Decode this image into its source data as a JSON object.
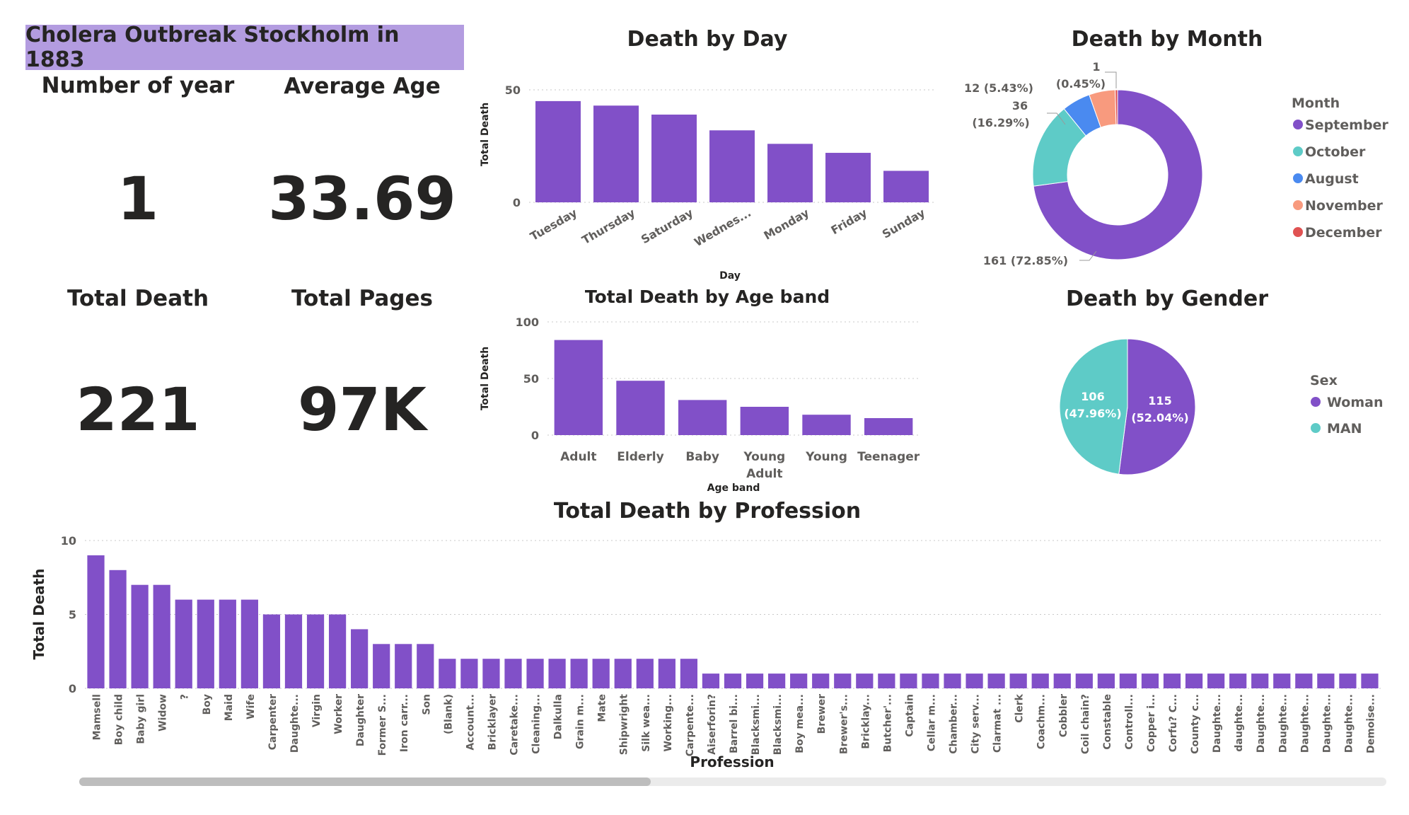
{
  "dashboard": {
    "title": "Cholera Outbreak Stockholm in 1883"
  },
  "kpis": {
    "years_label": "Number of year",
    "years_value": "1",
    "avg_age_label": "Average Age",
    "avg_age_value": "33.69",
    "total_death_label": "Total Death",
    "total_death_value": "221",
    "total_pages_label": "Total Pages",
    "total_pages_value": "97K"
  },
  "colors": {
    "bar": "#8150c8",
    "banner": "#b39ce0",
    "september": "#8150c8",
    "october": "#5ecbc7",
    "august": "#4a8af0",
    "november": "#f89a7e",
    "december": "#e05252",
    "woman": "#8150c8",
    "man": "#5ecbc7"
  },
  "chart_data": [
    {
      "id": "day",
      "type": "bar",
      "title": "Death by Day",
      "xlabel": "Day",
      "ylabel": "Total Death",
      "categories": [
        "Tuesday",
        "Thursday",
        "Saturday",
        "Wednes...",
        "Monday",
        "Friday",
        "Sunday"
      ],
      "values": [
        45,
        43,
        39,
        32,
        26,
        22,
        14
      ],
      "ylim": [
        0,
        50
      ],
      "yticks": [
        0,
        50
      ],
      "grid": true
    },
    {
      "id": "age",
      "type": "bar",
      "title": "Total Death by Age band",
      "xlabel": "Age band",
      "ylabel": "Total Death",
      "categories": [
        "Adult",
        "Elderly",
        "Baby",
        "Young Adult",
        "Young",
        "Teenager"
      ],
      "values": [
        84,
        48,
        31,
        25,
        18,
        15
      ],
      "ylim": [
        0,
        100
      ],
      "yticks": [
        0,
        50,
        100
      ],
      "grid": true
    },
    {
      "id": "month",
      "type": "pie",
      "donut": true,
      "title": "Death by Month",
      "legend_title": "Month",
      "legend_position": "right",
      "slices": [
        {
          "label": "September",
          "value": 161,
          "text": "161 (72.85%)"
        },
        {
          "label": "October",
          "value": 36,
          "text": "36 (16.29%)"
        },
        {
          "label": "August",
          "value": 12,
          "text": "12 (5.43%)"
        },
        {
          "label": "November",
          "value": 11,
          "text": ""
        },
        {
          "label": "December",
          "value": 1,
          "text": "1 (0.45%)"
        }
      ]
    },
    {
      "id": "gender",
      "type": "pie",
      "title": "Death by Gender",
      "legend_title": "Sex",
      "legend_position": "right",
      "slices": [
        {
          "label": "Woman",
          "value": 115,
          "text": "115 (52.04%)"
        },
        {
          "label": "MAN",
          "value": 106,
          "text": "106 (47.96%)"
        }
      ]
    },
    {
      "id": "profession",
      "type": "bar",
      "title": "Total Death by Profession",
      "xlabel": "Profession",
      "ylabel": "Total Death",
      "categories": [
        "Mamsell",
        "Boy child",
        "Baby girl",
        "Widow",
        "?",
        "Boy",
        "Maid",
        "Wife",
        "Carpenter",
        "Daughte...",
        "Virgin",
        "Worker",
        "Daughter",
        "Former S...",
        "Iron carr...",
        "Son",
        "(Blank)",
        "Account...",
        "Bricklayer",
        "Caretake...",
        "Cleaning...",
        "Dalkulla",
        "Grain m...",
        "Mate",
        "Shipwright",
        "Silk wea...",
        "Working...",
        "Carpente...",
        "Aiserforin?",
        "Barrel bi...",
        "Blacksmi...",
        "Blacksmi...",
        "Boy mea...",
        "Brewer",
        "Brewer's...",
        "Bricklay...",
        "Butcher'...",
        "Captain",
        "Cellar m...",
        "Chamber...",
        "City serv...",
        "Clarmat ...",
        "Clerk",
        "Coachm...",
        "Cobbler",
        "Coil chain?",
        "Constable",
        "Controll...",
        "Copper i...",
        "Corfu? C...",
        "County c...",
        "Daughte...",
        "daughte...",
        "Daughte...",
        "Daughte...",
        "Daughte...",
        "Daughte...",
        "Daughte...",
        "Demoise..."
      ],
      "values": [
        9,
        8,
        7,
        7,
        6,
        6,
        6,
        6,
        5,
        5,
        5,
        5,
        4,
        3,
        3,
        3,
        2,
        2,
        2,
        2,
        2,
        2,
        2,
        2,
        2,
        2,
        2,
        2,
        1,
        1,
        1,
        1,
        1,
        1,
        1,
        1,
        1,
        1,
        1,
        1,
        1,
        1,
        1,
        1,
        1,
        1,
        1,
        1,
        1,
        1,
        1,
        1,
        1,
        1,
        1,
        1,
        1,
        1,
        1
      ],
      "ylim": [
        0,
        10
      ],
      "yticks": [
        0,
        5,
        10
      ],
      "grid": true
    }
  ]
}
